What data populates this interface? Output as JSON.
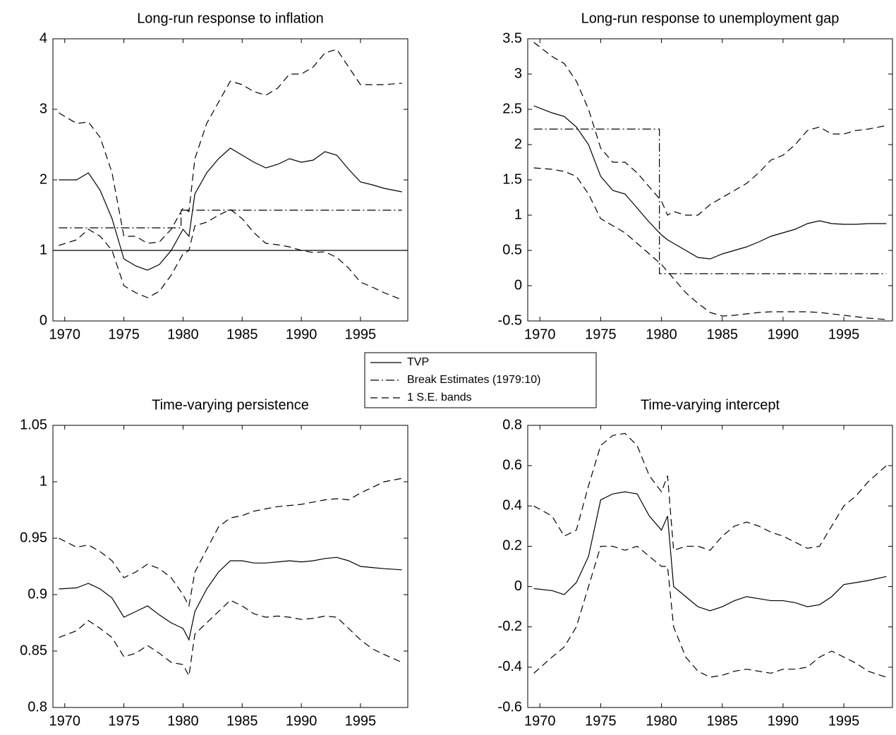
{
  "chart_data": [
    {
      "type": "line",
      "title": "Long-run response to inflation",
      "xlim": [
        1969,
        1999
      ],
      "xticks": [
        1970,
        1975,
        1980,
        1985,
        1990,
        1995
      ],
      "ylim": [
        0,
        4
      ],
      "yticks": [
        0,
        1,
        2,
        3,
        4
      ],
      "hline": 1,
      "x": [
        1969.5,
        1971,
        1972,
        1973,
        1974,
        1975,
        1976,
        1977,
        1978,
        1979,
        1980,
        1980.5,
        1981,
        1982,
        1983,
        1984,
        1985,
        1986,
        1987,
        1988,
        1989,
        1990,
        1991,
        1992,
        1993,
        1994,
        1995,
        1996,
        1997,
        1998.5
      ],
      "series": [
        {
          "legend": 0,
          "values": [
            2.0,
            2.0,
            2.1,
            1.85,
            1.45,
            0.88,
            0.78,
            0.72,
            0.8,
            1.0,
            1.3,
            1.2,
            1.8,
            2.1,
            2.3,
            2.45,
            2.35,
            2.25,
            2.17,
            2.22,
            2.3,
            2.25,
            2.28,
            2.4,
            2.35,
            2.15,
            1.97,
            1.93,
            1.88,
            1.83
          ]
        },
        {
          "legend": 2,
          "values": [
            2.95,
            2.8,
            2.82,
            2.6,
            2.1,
            1.2,
            1.2,
            1.1,
            1.12,
            1.3,
            1.6,
            1.55,
            2.3,
            2.8,
            3.1,
            3.4,
            3.35,
            3.25,
            3.2,
            3.3,
            3.5,
            3.5,
            3.6,
            3.8,
            3.85,
            3.6,
            3.35,
            3.35,
            3.35,
            3.37
          ]
        },
        {
          "legend": 2,
          "values": [
            1.07,
            1.15,
            1.3,
            1.2,
            1.0,
            0.5,
            0.4,
            0.33,
            0.42,
            0.65,
            0.95,
            1.0,
            1.35,
            1.4,
            1.5,
            1.58,
            1.45,
            1.25,
            1.1,
            1.08,
            1.05,
            1.0,
            0.97,
            0.98,
            0.9,
            0.75,
            0.55,
            0.48,
            0.4,
            0.3
          ]
        },
        {
          "legend": 1,
          "x": [
            1969.5,
            1979.83,
            1979.83,
            1998.5
          ],
          "values": [
            1.32,
            1.32,
            1.57,
            1.57
          ]
        }
      ]
    },
    {
      "type": "line",
      "title": "Long-run response to unemployment gap",
      "xlim": [
        1969,
        1999
      ],
      "xticks": [
        1970,
        1975,
        1980,
        1985,
        1990,
        1995
      ],
      "ylim": [
        -0.5,
        3.5
      ],
      "yticks": [
        -0.5,
        0,
        0.5,
        1,
        1.5,
        2,
        2.5,
        3,
        3.5
      ],
      "x": [
        1969.5,
        1971,
        1972,
        1973,
        1974,
        1975,
        1976,
        1977,
        1978,
        1979,
        1980,
        1980.5,
        1981,
        1982,
        1983,
        1984,
        1985,
        1986,
        1987,
        1988,
        1989,
        1990,
        1991,
        1992,
        1993,
        1994,
        1995,
        1996,
        1997,
        1998.5
      ],
      "series": [
        {
          "legend": 0,
          "values": [
            2.55,
            2.45,
            2.4,
            2.25,
            2.0,
            1.55,
            1.35,
            1.3,
            1.1,
            0.9,
            0.72,
            0.65,
            0.6,
            0.5,
            0.4,
            0.38,
            0.45,
            0.5,
            0.55,
            0.62,
            0.7,
            0.75,
            0.8,
            0.88,
            0.92,
            0.88,
            0.87,
            0.87,
            0.88,
            0.88
          ]
        },
        {
          "legend": 2,
          "values": [
            3.45,
            3.25,
            3.15,
            2.9,
            2.5,
            1.95,
            1.75,
            1.75,
            1.6,
            1.4,
            1.2,
            1.0,
            1.05,
            1.0,
            1.0,
            1.15,
            1.25,
            1.35,
            1.45,
            1.6,
            1.78,
            1.85,
            2.0,
            2.2,
            2.25,
            2.15,
            2.15,
            2.2,
            2.22,
            2.27
          ]
        },
        {
          "legend": 2,
          "values": [
            1.67,
            1.65,
            1.62,
            1.55,
            1.3,
            0.95,
            0.85,
            0.75,
            0.6,
            0.45,
            0.3,
            0.2,
            0.1,
            -0.1,
            -0.25,
            -0.38,
            -0.43,
            -0.42,
            -0.4,
            -0.38,
            -0.37,
            -0.37,
            -0.37,
            -0.37,
            -0.38,
            -0.4,
            -0.42,
            -0.44,
            -0.46,
            -0.48
          ]
        },
        {
          "legend": 1,
          "x": [
            1969.5,
            1979.83,
            1979.83,
            1998.5
          ],
          "values": [
            2.22,
            2.22,
            0.17,
            0.17
          ]
        }
      ]
    },
    {
      "type": "line",
      "title": "Time-varying persistence",
      "xlim": [
        1969,
        1999
      ],
      "xticks": [
        1970,
        1975,
        1980,
        1985,
        1990,
        1995
      ],
      "ylim": [
        0.8,
        1.05
      ],
      "yticks": [
        0.8,
        0.85,
        0.9,
        0.95,
        1,
        1.05
      ],
      "x": [
        1969.5,
        1971,
        1972,
        1973,
        1974,
        1975,
        1976,
        1977,
        1978,
        1979,
        1980,
        1980.5,
        1981,
        1982,
        1983,
        1984,
        1985,
        1986,
        1987,
        1988,
        1989,
        1990,
        1991,
        1992,
        1993,
        1994,
        1995,
        1996,
        1997,
        1998.5
      ],
      "series": [
        {
          "legend": 0,
          "values": [
            0.905,
            0.906,
            0.91,
            0.905,
            0.897,
            0.88,
            0.885,
            0.89,
            0.882,
            0.875,
            0.87,
            0.86,
            0.885,
            0.905,
            0.92,
            0.93,
            0.93,
            0.928,
            0.928,
            0.929,
            0.93,
            0.929,
            0.93,
            0.932,
            0.933,
            0.93,
            0.925,
            0.924,
            0.923,
            0.922
          ]
        },
        {
          "legend": 2,
          "values": [
            0.95,
            0.942,
            0.944,
            0.938,
            0.93,
            0.915,
            0.92,
            0.927,
            0.923,
            0.915,
            0.9,
            0.89,
            0.92,
            0.94,
            0.96,
            0.968,
            0.97,
            0.974,
            0.976,
            0.978,
            0.979,
            0.98,
            0.982,
            0.984,
            0.985,
            0.984,
            0.99,
            0.995,
            1.0,
            1.003
          ]
        },
        {
          "legend": 2,
          "values": [
            0.862,
            0.868,
            0.877,
            0.87,
            0.862,
            0.845,
            0.848,
            0.855,
            0.848,
            0.84,
            0.838,
            0.828,
            0.865,
            0.875,
            0.885,
            0.895,
            0.89,
            0.883,
            0.88,
            0.881,
            0.88,
            0.878,
            0.879,
            0.881,
            0.88,
            0.87,
            0.86,
            0.852,
            0.847,
            0.84
          ]
        }
      ]
    },
    {
      "type": "line",
      "title": "Time-varying intercept",
      "xlim": [
        1969,
        1999
      ],
      "xticks": [
        1970,
        1975,
        1980,
        1985,
        1990,
        1995
      ],
      "ylim": [
        -0.6,
        0.8
      ],
      "yticks": [
        -0.6,
        -0.4,
        -0.2,
        0,
        0.2,
        0.4,
        0.6,
        0.8
      ],
      "x": [
        1969.5,
        1971,
        1972,
        1973,
        1974,
        1975,
        1976,
        1977,
        1978,
        1979,
        1980,
        1980.5,
        1981,
        1982,
        1983,
        1984,
        1985,
        1986,
        1987,
        1988,
        1989,
        1990,
        1991,
        1992,
        1993,
        1994,
        1995,
        1996,
        1997,
        1998.5
      ],
      "series": [
        {
          "legend": 0,
          "values": [
            -0.01,
            -0.02,
            -0.04,
            0.02,
            0.15,
            0.43,
            0.46,
            0.47,
            0.46,
            0.35,
            0.28,
            0.35,
            0.0,
            -0.05,
            -0.1,
            -0.12,
            -0.1,
            -0.07,
            -0.05,
            -0.06,
            -0.07,
            -0.07,
            -0.08,
            -0.1,
            -0.09,
            -0.05,
            0.01,
            0.02,
            0.03,
            0.05
          ]
        },
        {
          "legend": 2,
          "values": [
            0.4,
            0.35,
            0.25,
            0.28,
            0.5,
            0.7,
            0.75,
            0.76,
            0.7,
            0.55,
            0.47,
            0.55,
            0.18,
            0.2,
            0.2,
            0.18,
            0.25,
            0.3,
            0.32,
            0.3,
            0.27,
            0.25,
            0.22,
            0.19,
            0.2,
            0.3,
            0.4,
            0.45,
            0.52,
            0.6
          ]
        },
        {
          "legend": 2,
          "values": [
            -0.43,
            -0.35,
            -0.3,
            -0.2,
            0.0,
            0.2,
            0.2,
            0.18,
            0.2,
            0.15,
            0.1,
            0.1,
            -0.2,
            -0.35,
            -0.42,
            -0.45,
            -0.44,
            -0.42,
            -0.41,
            -0.42,
            -0.43,
            -0.41,
            -0.41,
            -0.4,
            -0.35,
            -0.32,
            -0.35,
            -0.38,
            -0.42,
            -0.45
          ]
        }
      ]
    }
  ],
  "legend": {
    "position": "center",
    "entries": [
      {
        "name": "TVP",
        "style": "solid",
        "color": "#000000"
      },
      {
        "name": "Break Estimates (1979:10)",
        "style": "dashdot",
        "color": "#000000"
      },
      {
        "name": "1 S.E. bands",
        "style": "dashed",
        "color": "#000000"
      }
    ]
  }
}
